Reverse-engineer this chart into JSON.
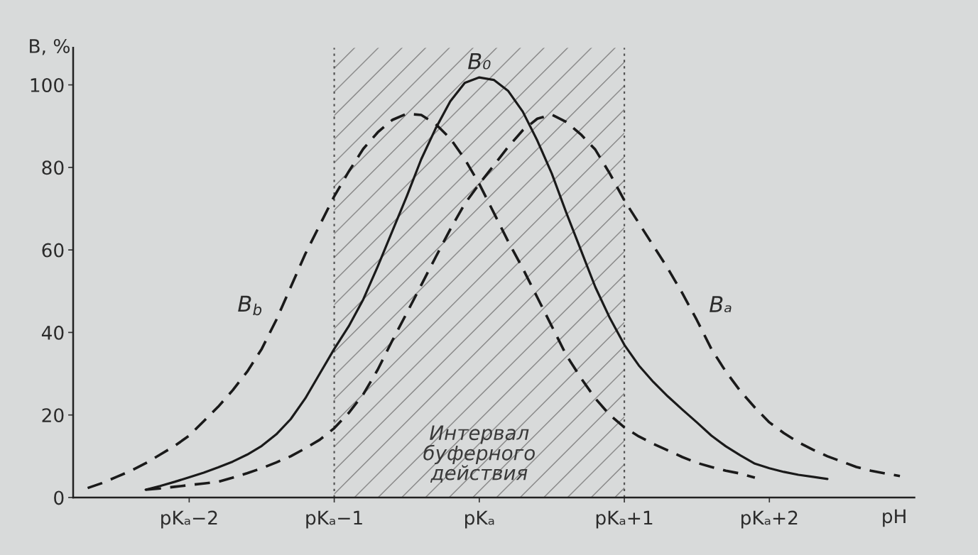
{
  "chart_data": {
    "type": "line",
    "ylabel": "B, %",
    "xlabel": "pH",
    "ylim": [
      0,
      109
    ],
    "yticks": [
      0,
      20,
      40,
      60,
      80,
      100
    ],
    "legend": false,
    "categories": [
      null,
      null,
      null,
      null,
      null,
      null,
      null,
      null,
      "pKₐ−2",
      null,
      null,
      null,
      null,
      null,
      null,
      null,
      null,
      null,
      "pKₐ−1",
      null,
      null,
      null,
      null,
      null,
      null,
      null,
      null,
      null,
      "pKₐ",
      null,
      null,
      null,
      null,
      null,
      null,
      null,
      null,
      null,
      "pKₐ+1",
      null,
      null,
      null,
      null,
      null,
      null,
      null,
      null,
      null,
      "pKₐ+2",
      null,
      null,
      null,
      null,
      null,
      null,
      null,
      null,
      null,
      null
    ],
    "series": [
      {
        "name": "B$_{b}$",
        "color": "#1a1a1a",
        "line_style": "dashed",
        "values": [
          null,
          2.3,
          3.5,
          5,
          6.5,
          8.3,
          10.4,
          12.5,
          15,
          18.5,
          22,
          26,
          30.5,
          36,
          43,
          51,
          59,
          66,
          73,
          79,
          84.5,
          88.5,
          91.5,
          93,
          92.7,
          90.5,
          87,
          82,
          76,
          69,
          62,
          55.5,
          48.5,
          41.5,
          34.5,
          29,
          24,
          20,
          17,
          14.8,
          13,
          11.4,
          9.8,
          8.4,
          7.4,
          6.5,
          5.8,
          4.8,
          null,
          null,
          null,
          null,
          null,
          null,
          null,
          null,
          null,
          null,
          null
        ]
      },
      {
        "name": "B₀",
        "color": "#1a1a1a",
        "line_style": "solid",
        "values": [
          null,
          null,
          null,
          null,
          null,
          1.9,
          2.8,
          3.8,
          4.9,
          6,
          7.3,
          8.7,
          10.4,
          12.5,
          15.3,
          19,
          24,
          30,
          36,
          41.5,
          48,
          56,
          64.5,
          73,
          82,
          89.5,
          96,
          100.5,
          101.8,
          101.2,
          98.5,
          93.5,
          86.5,
          78.5,
          69,
          60,
          51,
          43.5,
          37,
          32,
          28,
          24.5,
          21.3,
          18.2,
          15,
          12.4,
          10.2,
          8.2,
          7.1,
          6.2,
          5.5,
          5,
          4.5,
          null,
          null,
          null,
          null,
          null,
          null
        ]
      },
      {
        "name": "Bₐ",
        "color": "#1a1a1a",
        "line_style": "dashed",
        "values": [
          null,
          null,
          null,
          null,
          null,
          1.9,
          2.2,
          2.6,
          3,
          3.4,
          3.8,
          4.8,
          5.9,
          7.1,
          8.5,
          10,
          11.9,
          14,
          16.8,
          20.5,
          25,
          31,
          38,
          44.7,
          51.5,
          58.3,
          65,
          71.2,
          76,
          80.5,
          85,
          89,
          91.8,
          92.8,
          91,
          88,
          84.3,
          78.5,
          72,
          66.5,
          61,
          55.5,
          49.5,
          43,
          36,
          30.5,
          25.8,
          21.8,
          18.2,
          15.6,
          13.4,
          11.6,
          10,
          8.7,
          7.4,
          6.5,
          5.8,
          5.2,
          null
        ]
      }
    ],
    "bands": [
      {
        "axis": "x",
        "from": "pKₐ−1",
        "to": "pKₐ+1",
        "label": "Интервал\nбуферного\nдействия",
        "color": "#8c8c8c"
      }
    ],
    "ref_lines": [
      {
        "axis": "x",
        "value": "pKₐ−1",
        "line_style": "dotted",
        "color": "#555555"
      },
      {
        "axis": "x",
        "value": "pKₐ+1",
        "line_style": "dotted",
        "color": "#555555"
      }
    ]
  }
}
